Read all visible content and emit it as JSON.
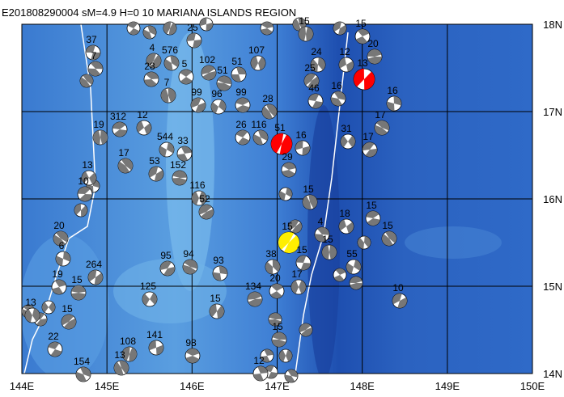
{
  "title": "E201808290004 sM=4.9 H=0 10 MARIANA ISLANDS REGION",
  "lon_labels": [
    "144E",
    "145E",
    "146E",
    "147E",
    "148E",
    "149E",
    "150E"
  ],
  "lat_labels": [
    "18N",
    "17N",
    "16N",
    "15N",
    "14N"
  ],
  "events": [
    {
      "label": "37"
    },
    {
      "label": "7"
    },
    {
      "label": "19"
    },
    {
      "label": "12"
    },
    {
      "label": "312"
    },
    {
      "label": "17"
    },
    {
      "label": "544"
    },
    {
      "label": "53"
    },
    {
      "label": "152"
    },
    {
      "label": "33"
    },
    {
      "label": "116"
    },
    {
      "label": "52"
    },
    {
      "label": "26"
    },
    {
      "label": "116"
    },
    {
      "label": "51",
      "color": "#ff0000"
    },
    {
      "label": "16"
    },
    {
      "label": "29"
    },
    {
      "label": "15"
    },
    {
      "label": "31"
    },
    {
      "label": "17"
    },
    {
      "label": "17"
    },
    {
      "label": "16"
    },
    {
      "label": "13",
      "color": "#ff0000"
    },
    {
      "label": "20"
    },
    {
      "label": "15"
    },
    {
      "label": "24"
    },
    {
      "label": "25"
    },
    {
      "label": "46"
    },
    {
      "label": "16"
    },
    {
      "label": "15"
    },
    {
      "label": "12"
    },
    {
      "label": "99"
    },
    {
      "label": "28"
    },
    {
      "label": "96"
    },
    {
      "label": "99"
    },
    {
      "label": "51"
    },
    {
      "label": "51"
    },
    {
      "label": "107"
    },
    {
      "label": "102"
    },
    {
      "label": "5"
    },
    {
      "label": "576"
    },
    {
      "label": "4"
    },
    {
      "label": "25"
    },
    {
      "label": "28"
    },
    {
      "label": "7"
    },
    {
      "label": "13"
    },
    {
      "label": "10"
    },
    {
      "label": "20"
    },
    {
      "label": "6"
    },
    {
      "label": "264"
    },
    {
      "label": "15"
    },
    {
      "label": "19"
    },
    {
      "label": "13"
    },
    {
      "label": "15"
    },
    {
      "label": "22"
    },
    {
      "label": "154"
    },
    {
      "label": "108"
    },
    {
      "label": "141"
    },
    {
      "label": "98"
    },
    {
      "label": "13"
    },
    {
      "label": "125"
    },
    {
      "label": "95"
    },
    {
      "label": "94"
    },
    {
      "label": "93"
    },
    {
      "label": "15"
    },
    {
      "label": "134"
    },
    {
      "label": "20"
    },
    {
      "label": "38"
    },
    {
      "label": "15",
      "color": "#ffee00"
    },
    {
      "label": "15"
    },
    {
      "label": "4"
    },
    {
      "label": "15"
    },
    {
      "label": "18"
    },
    {
      "label": "15"
    },
    {
      "label": "15"
    },
    {
      "label": "55"
    },
    {
      "label": "10"
    },
    {
      "label": "15"
    },
    {
      "label": "12"
    },
    {
      "label": "17"
    }
  ]
}
